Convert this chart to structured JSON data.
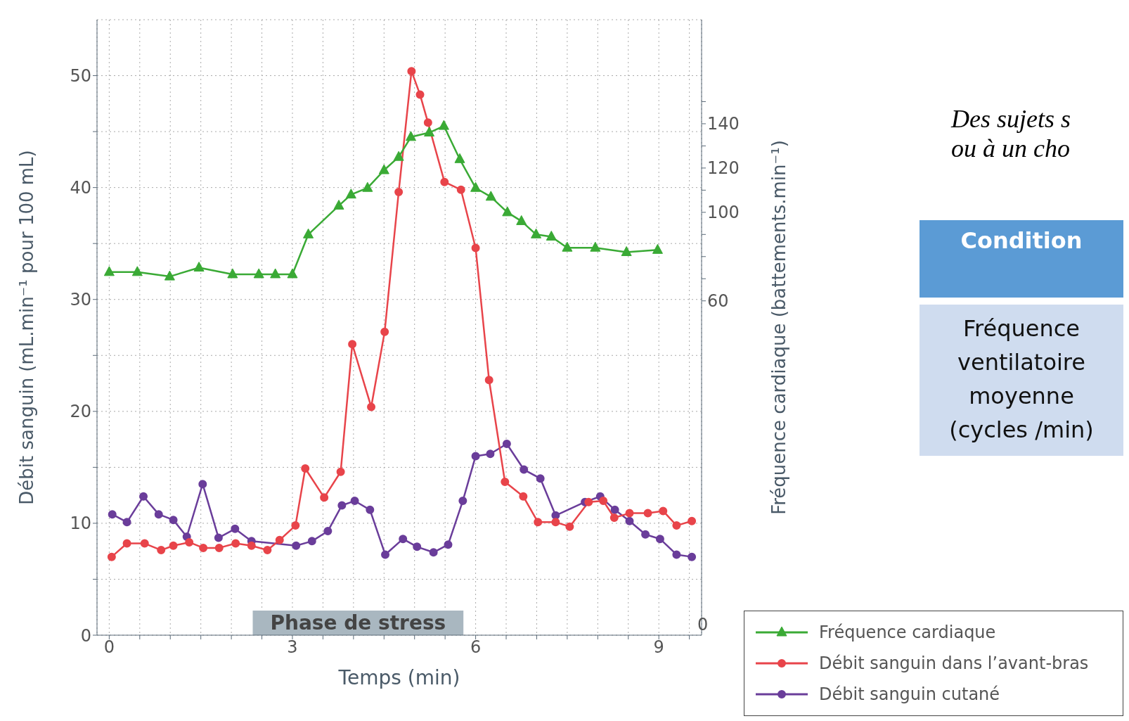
{
  "chart_data": {
    "type": "line",
    "xlabel": "Temps (min)",
    "ylabel": "Débit sanguin (mL.min⁻¹ pour 100 mL)",
    "y2label": "Fréquence cardiaque (battements.min⁻¹)",
    "xlim": [
      -0.2,
      9.7
    ],
    "xticks": [
      0,
      {
        "value": 0.5,
        "label": null
      },
      {
        "value": 1,
        "label": null
      },
      {
        "value": 1.5,
        "label": null
      },
      {
        "value": 2,
        "label": null
      },
      {
        "value": 2.5,
        "label": null
      },
      3,
      {
        "value": 3.5,
        "label": null
      },
      {
        "value": 4,
        "label": null
      },
      {
        "value": 4.5,
        "label": null
      },
      {
        "value": 5,
        "label": null
      },
      {
        "value": 5.5,
        "label": null
      },
      6,
      {
        "value": 6.5,
        "label": null
      },
      {
        "value": 7,
        "label": null
      },
      {
        "value": 7.5,
        "label": null
      },
      {
        "value": 8,
        "label": null
      },
      {
        "value": 8.5,
        "label": null
      },
      9,
      {
        "value": 9.5,
        "label": null
      }
    ],
    "ylim": [
      0,
      55
    ],
    "yticks": [
      0,
      {
        "value": 5,
        "label": null
      },
      10,
      {
        "value": 15,
        "label": null
      },
      20,
      {
        "value": 25,
        "label": null
      },
      30,
      {
        "value": 35,
        "label": null
      },
      40,
      {
        "value": 45,
        "label": null
      },
      50
    ],
    "y2lim": [
      -91,
      187
    ],
    "y2ticks": [
      60,
      {
        "value": 70,
        "label": null
      },
      {
        "value": 80,
        "label": null
      },
      {
        "value": 90,
        "label": null
      },
      100,
      {
        "value": 110,
        "label": null
      },
      120,
      {
        "value": 130,
        "label": null
      },
      140,
      {
        "value": 150,
        "label": null
      }
    ],
    "grid": true,
    "legend": "bottom right",
    "bands": [
      {
        "axis": "x",
        "from": 2.35,
        "to": 5.8,
        "label": "Phase de stress",
        "color": "#a9b7c0"
      }
    ],
    "annotations": [
      "0",
      "Des sujets s",
      "ou à un cho",
      "Condition",
      "Fréquence ventilatoire moyenne (cycles /min)"
    ],
    "series": [
      {
        "name": "Fréquence cardiaque",
        "color": "#3aaa35",
        "axis": "y2",
        "marker": "triangle",
        "x": [
          0,
          0.46,
          0.99,
          1.47,
          2.02,
          2.45,
          2.72,
          3.0,
          3.26,
          3.76,
          3.96,
          4.23,
          4.5,
          4.74,
          4.94,
          5.24,
          5.48,
          5.74,
          6.0,
          6.25,
          6.52,
          6.75,
          6.99,
          7.24,
          7.5,
          7.96,
          8.47,
          8.98
        ],
        "values": [
          73,
          73,
          71,
          75,
          72,
          72,
          72,
          72,
          90,
          103,
          108,
          111,
          119,
          125,
          134,
          136,
          139,
          124,
          111,
          107,
          100,
          96,
          90,
          89,
          84,
          84,
          82,
          83
        ]
      },
      {
        "name": "Débit sanguin dans l’avant-bras",
        "color": "#e8444a",
        "marker": "circle",
        "x": [
          0.04,
          0.29,
          0.58,
          0.85,
          1.05,
          1.31,
          1.54,
          1.8,
          2.07,
          2.33,
          2.59,
          2.79,
          3.05,
          3.21,
          3.52,
          3.79,
          3.98,
          4.29,
          4.51,
          4.74,
          4.95,
          5.09,
          5.22,
          5.49,
          5.76,
          6.0,
          6.22,
          6.48,
          6.78,
          7.02,
          7.31,
          7.54,
          7.85,
          8.09,
          8.27,
          8.52,
          8.82,
          9.07,
          9.29,
          9.54
        ],
        "values": [
          7.0,
          8.2,
          8.2,
          7.6,
          8.0,
          8.3,
          7.8,
          7.8,
          8.2,
          8.0,
          7.6,
          8.5,
          9.8,
          14.9,
          12.3,
          14.6,
          26.0,
          20.4,
          27.1,
          39.6,
          50.4,
          48.3,
          45.8,
          40.5,
          39.8,
          34.6,
          22.8,
          13.7,
          12.4,
          10.1,
          10.1,
          9.7,
          11.9,
          12.0,
          10.5,
          10.9,
          10.9,
          11.1,
          9.8,
          10.2
        ]
      },
      {
        "name": "Débit sanguin cutané",
        "color": "#6a3d9a",
        "marker": "circle",
        "x": [
          0.05,
          0.29,
          0.56,
          0.81,
          1.05,
          1.27,
          1.53,
          1.79,
          2.06,
          2.33,
          3.06,
          3.32,
          3.58,
          3.81,
          4.02,
          4.27,
          4.52,
          4.81,
          5.04,
          5.31,
          5.55,
          5.79,
          6.0,
          6.24,
          6.51,
          6.79,
          7.06,
          7.31,
          7.79,
          8.04,
          8.28,
          8.52,
          8.78,
          9.02,
          9.29,
          9.54
        ],
        "values": [
          10.8,
          10.1,
          12.4,
          10.8,
          10.3,
          8.8,
          13.5,
          8.7,
          9.5,
          8.4,
          8.0,
          8.4,
          9.3,
          11.6,
          12.0,
          11.2,
          7.2,
          8.6,
          7.9,
          7.4,
          8.1,
          12.0,
          16.0,
          16.2,
          17.1,
          14.8,
          14.0,
          10.7,
          11.9,
          12.4,
          11.2,
          10.2,
          9.0,
          8.6,
          7.2,
          7.0
        ]
      }
    ]
  }
}
